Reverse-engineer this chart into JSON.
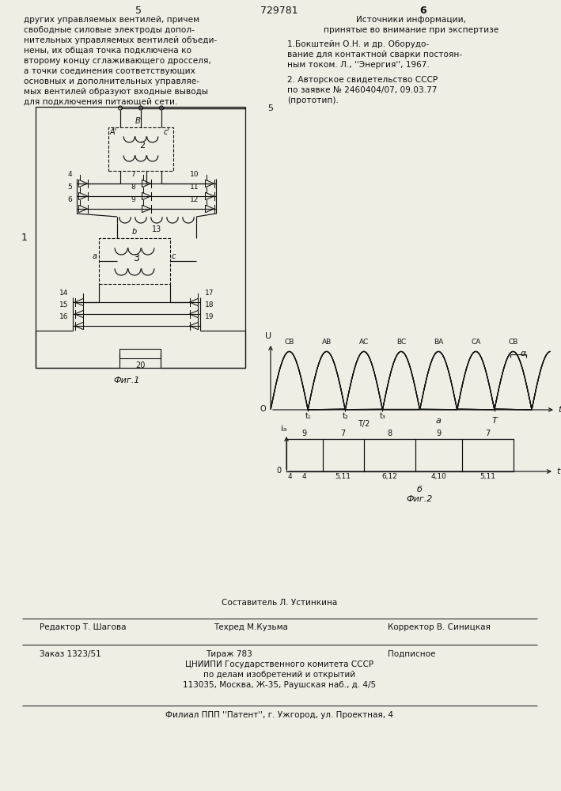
{
  "page_number_left": "5",
  "page_number_center": "729781",
  "page_number_right": "6",
  "left_text": [
    "других управляемых вентилей, причем",
    "свободные силовые электроды допол-",
    "нительных управляемых вентилей объеди-",
    "нены, их общая точка подключена ко",
    "второму концу сглаживающего дросселя,",
    "а точки соединения соответствующих",
    "основных и дополнительных управляе-",
    "мых вентилей образуют входные выводы",
    "для подключения питающей сети."
  ],
  "right_text_title": [
    "Источники информации,",
    "принятые во внимание при экспертизе"
  ],
  "right_text_1": [
    "1.Бокштейн О.Н. и др. Оборудо-",
    "вание для контактной сварки постоян-",
    "ным током. Л., ''Энергия'', 1967."
  ],
  "right_text_2": [
    "2. Авторское свидетельство СССР",
    "по заявке № 2460404/07, 09.03.77",
    "(прототип)."
  ],
  "footer_composer": "Составитель Л. Устинкина",
  "footer_editor": "Редактор Т. Шагова",
  "footer_techred": "Техред М.Кузьма",
  "footer_corrector": "Корректор В. Синицкая",
  "footer_order": "Заказ 1323/51",
  "footer_tirazh": "Тираж 783",
  "footer_podpisnoe": "Подписное",
  "footer_tsniip": "ЦНИИПИ Государственного комитета СССР",
  "footer_dela": "по делам изобретений и открытий",
  "footer_address": "113035, Москва, Ж-35, Раушская наб., д. 4/5",
  "footer_filial": "Филиал ППП ''Патент'', г. Ужгород, ул. Проектная, 4",
  "bg_color": "#f0ede5",
  "text_color": "#111111",
  "line_color": "#111111",
  "wf_phase_labels": [
    "CB",
    "AB",
    "AC",
    "BC",
    "BA",
    "CA",
    "CB"
  ],
  "ia_top_labels": [
    "9",
    "7",
    "8",
    "9",
    "7"
  ],
  "ia_bot_labels": [
    "4",
    "5,11",
    "6,12",
    "4,10",
    "5,11"
  ]
}
